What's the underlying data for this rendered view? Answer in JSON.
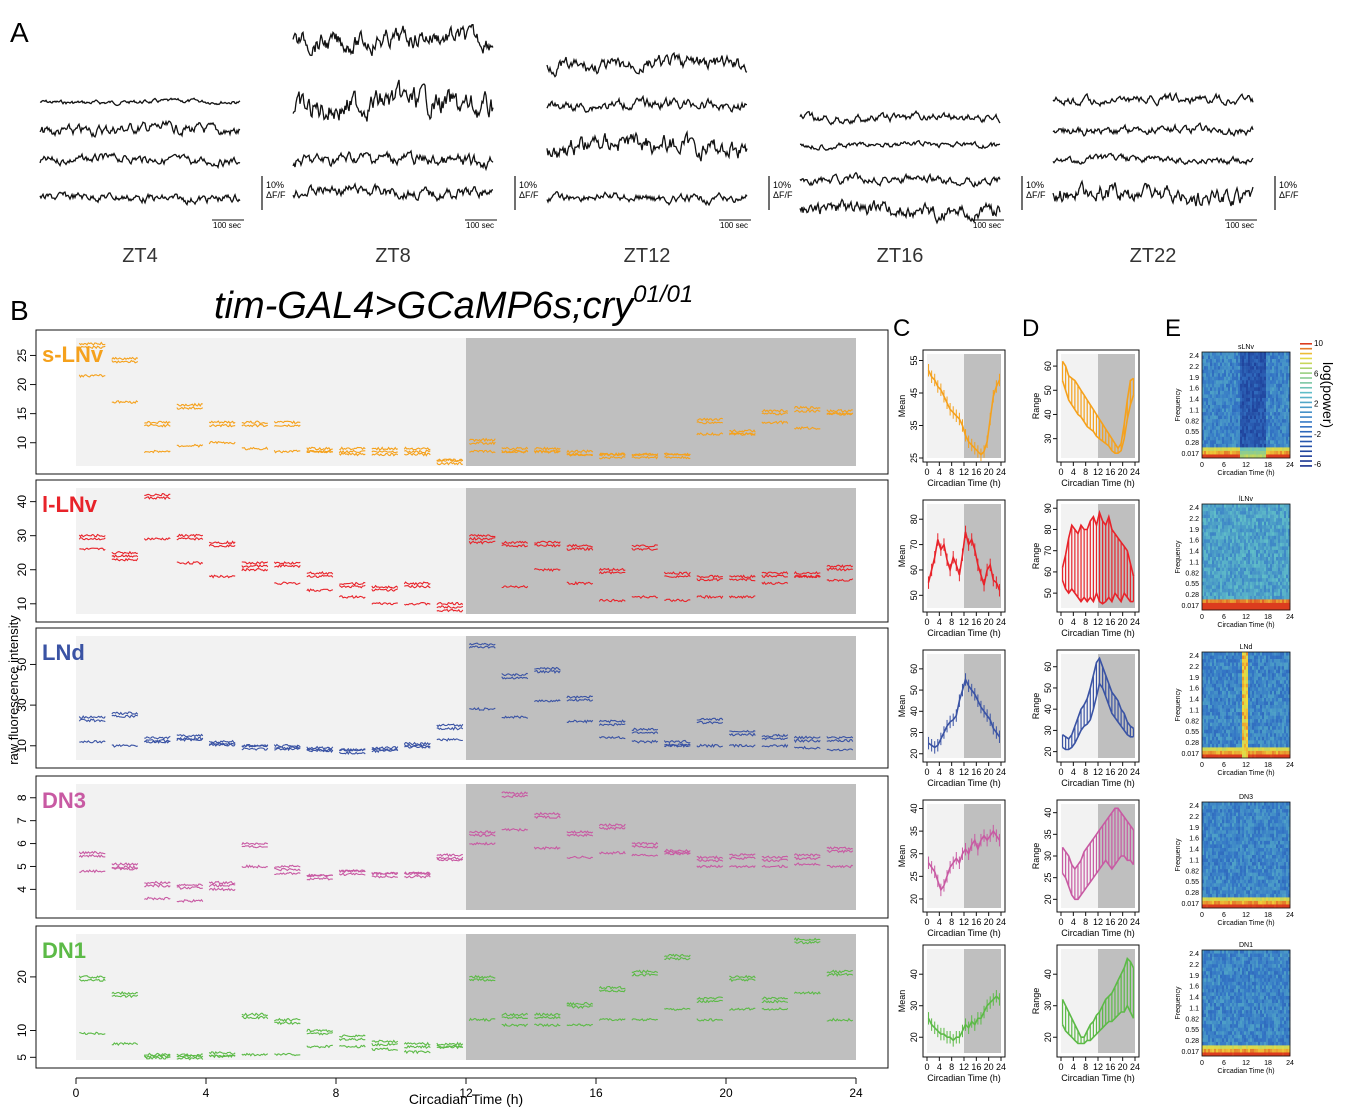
{
  "panels": {
    "A": {
      "letter": "A",
      "scale_pct": "10%",
      "scale_unit": "ΔF/F",
      "time_bar": "100 sec",
      "groups": [
        "ZT4",
        "ZT8",
        "ZT12",
        "ZT16",
        "ZT22"
      ]
    },
    "B": {
      "letter": "B",
      "title_main": "tim-GAL4>GCaMP6s;cry",
      "title_sup": "01/01",
      "xlabel": "Circadian Time (h)",
      "ylabel": "raw fluorescence intensity",
      "xticks": [
        0,
        4,
        8,
        12,
        16,
        20,
        24
      ],
      "dark_start": 12,
      "dark_end": 24,
      "rows": [
        {
          "name": "s-LNv",
          "color": "#f5a11c",
          "yticks": [
            10,
            15,
            20,
            25
          ],
          "ylim": [
            6,
            28
          ]
        },
        {
          "name": "l-LNv",
          "color": "#e8232a",
          "yticks": [
            10,
            20,
            30,
            40
          ],
          "ylim": [
            7,
            44
          ]
        },
        {
          "name": "LNd",
          "color": "#3a53a4",
          "yticks": [
            10,
            30,
            50
          ],
          "ylim": [
            3,
            64
          ]
        },
        {
          "name": "DN3",
          "color": "#c85aa3",
          "yticks": [
            4,
            5,
            6,
            7,
            8
          ],
          "ylim": [
            3.1,
            8.6
          ]
        },
        {
          "name": "DN1",
          "color": "#5cba47",
          "yticks": [
            5,
            10,
            20
          ],
          "ylim": [
            4.5,
            28
          ]
        }
      ]
    },
    "C": {
      "letter": "C",
      "ylabel": "Mean",
      "xlabel": "Circadian Time (h)",
      "xticks": [
        0,
        4,
        8,
        12,
        16,
        20,
        24
      ]
    },
    "D": {
      "letter": "D",
      "ylabel": "Range",
      "xlabel": "Circadian Time (h)",
      "xticks": [
        0,
        4,
        8,
        12,
        16,
        20,
        24
      ]
    },
    "E": {
      "letter": "E",
      "ylabel": "Frequency",
      "xlabel": "Circadian Time (h)",
      "xticks": [
        "0",
        "6",
        "12",
        "18",
        "24"
      ],
      "yticks": [
        "2.4",
        "2.2",
        "1.9",
        "1.6",
        "1.4",
        "1.1",
        "0.82",
        "0.55",
        "0.28",
        "0.017"
      ],
      "colorbar_label": "log(power)",
      "colorbar_ticks": [
        "10",
        "6",
        "2",
        "-2",
        "-6"
      ],
      "titles": [
        "sLNv",
        "lLNv",
        "LNd",
        "DN3",
        "DN1"
      ]
    }
  },
  "chart_data": [
    {
      "type": "line",
      "panel": "C",
      "x": [
        0.5,
        1.5,
        2.5,
        3.5,
        4.5,
        5.5,
        6.5,
        7.5,
        8.5,
        9.5,
        10.5,
        11.5,
        12.5,
        13.5,
        14.5,
        15.5,
        16.5,
        17.5,
        18.5,
        19.5,
        20.5,
        21.5,
        22.5,
        23.5
      ],
      "series": [
        {
          "name": "s-LNv",
          "ylim": [
            25,
            57
          ],
          "yticks": [
            25,
            35,
            45,
            55
          ],
          "values": [
            52,
            50,
            49,
            47,
            46,
            44,
            42,
            40,
            39,
            38,
            37,
            35,
            32,
            30,
            29,
            28,
            27,
            26,
            27,
            30,
            37,
            44,
            47,
            49
          ]
        },
        {
          "name": "l-LNv",
          "ylim": [
            45,
            86
          ],
          "yticks": [
            50,
            60,
            70,
            80
          ],
          "values": [
            55,
            60,
            65,
            72,
            68,
            70,
            64,
            60,
            65,
            62,
            58,
            66,
            75,
            70,
            72,
            68,
            62,
            58,
            54,
            60,
            62,
            56,
            55,
            52
          ]
        },
        {
          "name": "LNd",
          "ylim": [
            18,
            67
          ],
          "yticks": [
            20,
            30,
            40,
            50,
            60
          ],
          "values": [
            25,
            24,
            23,
            24,
            27,
            30,
            33,
            35,
            36,
            38,
            45,
            50,
            55,
            52,
            50,
            48,
            45,
            42,
            40,
            38,
            36,
            32,
            30,
            28
          ]
        },
        {
          "name": "DN3",
          "ylim": [
            18,
            41
          ],
          "yticks": [
            20,
            25,
            30,
            35,
            40
          ],
          "values": [
            28,
            27,
            26,
            24,
            22,
            23,
            25,
            27,
            28,
            29,
            28,
            30,
            31,
            30,
            32,
            33,
            31,
            33,
            34,
            33,
            34,
            35,
            34,
            33
          ]
        },
        {
          "name": "DN1",
          "ylim": [
            15,
            48
          ],
          "yticks": [
            20,
            30,
            40
          ],
          "values": [
            26,
            24,
            23,
            22,
            21,
            21,
            20,
            20,
            19,
            20,
            20,
            22,
            24,
            23,
            25,
            24,
            26,
            26,
            28,
            30,
            31,
            32,
            33,
            32
          ]
        }
      ]
    },
    {
      "type": "area",
      "panel": "D",
      "x": [
        0.5,
        1.5,
        2.5,
        3.5,
        4.5,
        5.5,
        6.5,
        7.5,
        8.5,
        9.5,
        10.5,
        11.5,
        12.5,
        13.5,
        14.5,
        15.5,
        16.5,
        17.5,
        18.5,
        19.5,
        20.5,
        21.5,
        22.5,
        23.5
      ],
      "series": [
        {
          "name": "s-LNv",
          "ylim": [
            22,
            65
          ],
          "yticks": [
            30,
            40,
            50,
            60
          ],
          "upper": [
            62,
            60,
            56,
            55,
            54,
            52,
            50,
            48,
            46,
            44,
            42,
            40,
            38,
            36,
            34,
            32,
            30,
            28,
            26,
            28,
            36,
            46,
            54,
            55
          ],
          "lower": [
            54,
            50,
            46,
            44,
            42,
            40,
            39,
            37,
            35,
            34,
            33,
            31,
            30,
            29,
            28,
            27,
            25,
            24,
            24,
            25,
            30,
            38,
            44,
            48
          ]
        },
        {
          "name": "l-LNv",
          "ylim": [
            43,
            92
          ],
          "yticks": [
            50,
            60,
            70,
            80,
            90
          ],
          "upper": [
            62,
            68,
            76,
            82,
            80,
            78,
            82,
            80,
            80,
            84,
            86,
            82,
            88,
            84,
            82,
            86,
            80,
            78,
            76,
            74,
            72,
            70,
            64,
            58
          ],
          "lower": [
            56,
            52,
            50,
            52,
            50,
            48,
            46,
            48,
            46,
            48,
            46,
            50,
            46,
            45,
            46,
            48,
            46,
            50,
            48,
            46,
            50,
            48,
            46,
            46
          ]
        },
        {
          "name": "LNd",
          "ylim": [
            17,
            66
          ],
          "yticks": [
            20,
            30,
            40,
            50,
            60
          ],
          "upper": [
            28,
            27,
            26,
            28,
            32,
            36,
            40,
            42,
            45,
            50,
            56,
            62,
            64,
            60,
            56,
            52,
            48,
            46,
            44,
            40,
            38,
            34,
            32,
            31
          ],
          "lower": [
            22,
            21,
            21,
            22,
            24,
            27,
            30,
            32,
            33,
            35,
            40,
            46,
            52,
            50,
            46,
            42,
            38,
            36,
            34,
            32,
            30,
            28,
            27,
            27
          ]
        },
        {
          "name": "DN3",
          "ylim": [
            18,
            42
          ],
          "yticks": [
            20,
            25,
            30,
            35,
            40
          ],
          "upper": [
            32,
            31,
            30,
            28,
            27,
            28,
            29,
            31,
            32,
            33,
            34,
            35,
            36,
            37,
            38,
            39,
            40,
            41,
            41,
            40,
            39,
            38,
            37,
            36
          ],
          "lower": [
            26,
            25,
            23,
            21,
            20,
            20,
            21,
            22,
            23,
            24,
            25,
            26,
            27,
            28,
            29,
            28,
            27,
            28,
            29,
            30,
            30,
            29,
            29,
            28
          ]
        },
        {
          "name": "DN1",
          "ylim": [
            15,
            48
          ],
          "yticks": [
            20,
            30,
            40
          ],
          "upper": [
            32,
            30,
            28,
            26,
            24,
            22,
            20,
            20,
            22,
            24,
            25,
            27,
            28,
            30,
            32,
            33,
            34,
            36,
            38,
            40,
            42,
            45,
            44,
            42
          ],
          "lower": [
            24,
            22,
            21,
            20,
            19,
            18,
            18,
            18,
            19,
            19,
            20,
            21,
            22,
            23,
            24,
            25,
            25,
            26,
            27,
            28,
            28,
            30,
            28,
            26
          ]
        }
      ]
    }
  ]
}
